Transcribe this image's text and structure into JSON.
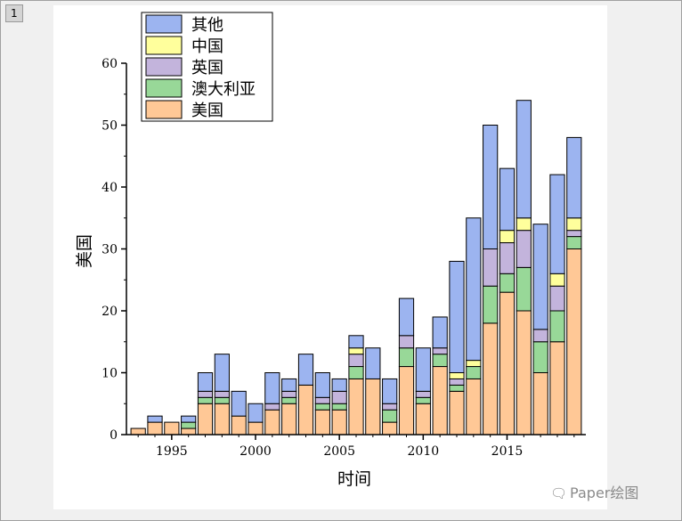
{
  "page": {
    "tab_label": "1"
  },
  "watermark": {
    "text": "Paper绘图",
    "icon": "wechat-icon"
  },
  "chart_data": {
    "type": "bar",
    "stacked": true,
    "xlabel": "时间",
    "ylabel": "美国",
    "ylim": [
      0,
      60
    ],
    "yticks": [
      0,
      10,
      20,
      30,
      40,
      50,
      60
    ],
    "xlim": [
      1992.3,
      2019.7
    ],
    "xticks": [
      1995,
      2000,
      2005,
      2010,
      2015
    ],
    "legend_position": "top-left",
    "legend_order": [
      "其他",
      "中国",
      "英国",
      "澳大利亚",
      "美国"
    ],
    "x": [
      1993,
      1994,
      1995,
      1996,
      1997,
      1998,
      1999,
      2000,
      2001,
      2002,
      2003,
      2004,
      2005,
      2006,
      2007,
      2008,
      2009,
      2010,
      2011,
      2012,
      2013,
      2014,
      2015,
      2016,
      2017,
      2018,
      2019
    ],
    "series": [
      {
        "name": "美国",
        "color": "#ffc896",
        "values": [
          1,
          2,
          2,
          1,
          5,
          5,
          3,
          2,
          4,
          5,
          8,
          4,
          4,
          9,
          9,
          2,
          11,
          5,
          11,
          7,
          9,
          18,
          23,
          20,
          10,
          15,
          30
        ]
      },
      {
        "name": "澳大利亚",
        "color": "#98d898",
        "values": [
          0,
          0,
          0,
          1,
          1,
          1,
          0,
          0,
          0,
          1,
          0,
          1,
          1,
          2,
          0,
          2,
          3,
          1,
          2,
          1,
          2,
          6,
          3,
          7,
          5,
          5,
          2
        ]
      },
      {
        "name": "英国",
        "color": "#c3b4dc",
        "values": [
          0,
          0,
          0,
          0,
          1,
          1,
          0,
          0,
          1,
          1,
          0,
          1,
          2,
          2,
          0,
          1,
          2,
          1,
          1,
          1,
          0,
          6,
          5,
          6,
          2,
          4,
          1
        ]
      },
      {
        "name": "中国",
        "color": "#ffff9c",
        "values": [
          0,
          0,
          0,
          0,
          0,
          0,
          0,
          0,
          0,
          0,
          0,
          0,
          0,
          1,
          0,
          0,
          0,
          0,
          0,
          1,
          1,
          0,
          2,
          2,
          0,
          2,
          2
        ]
      },
      {
        "name": "其他",
        "color": "#9cb4f0",
        "values": [
          0,
          1,
          0,
          1,
          3,
          6,
          4,
          3,
          5,
          2,
          5,
          4,
          2,
          2,
          5,
          4,
          6,
          7,
          5,
          18,
          23,
          20,
          10,
          19,
          17,
          16,
          13
        ]
      }
    ]
  }
}
